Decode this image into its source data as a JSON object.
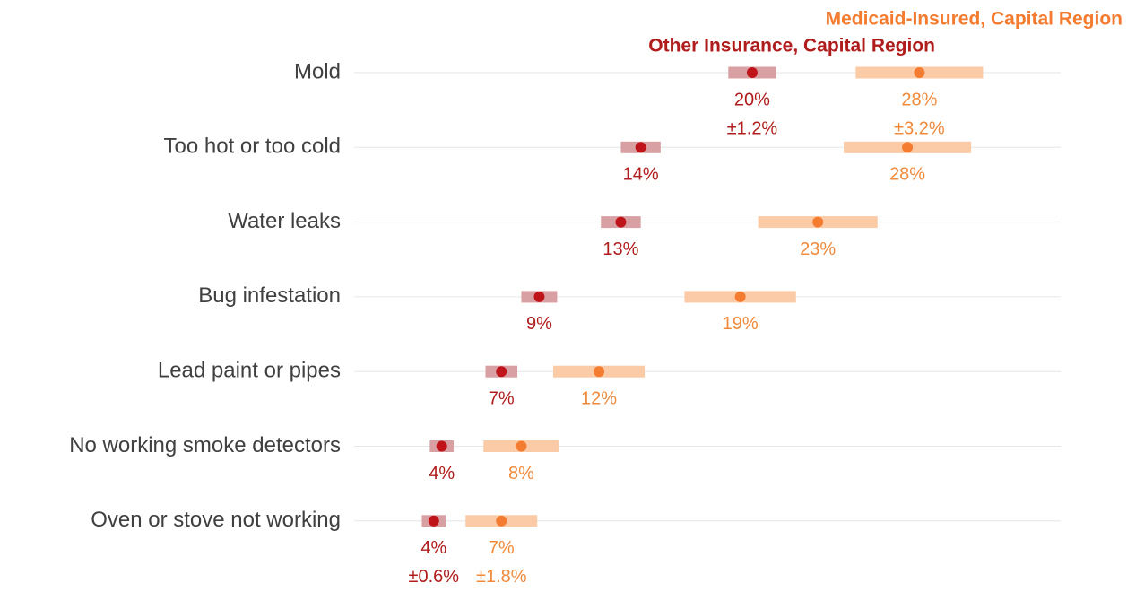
{
  "chart_data": {
    "type": "dot-range",
    "categories": [
      "Mold",
      "Too hot or too cold",
      "Water leaks",
      "Bug infestation",
      "Lead paint or pipes",
      "No working smoke detectors",
      "Oven or stove not working"
    ],
    "series": [
      {
        "name": "Other Insurance, Capital Region",
        "color": "#c0141b",
        "bar_color": "#d9a0a3",
        "label_color": "#b01c1c",
        "values": [
          20.0,
          14.4,
          13.4,
          9.3,
          7.4,
          4.4,
          4.0
        ],
        "value_labels": [
          "20%",
          "14%",
          "13%",
          "9%",
          "7%",
          "4%",
          "4%"
        ],
        "errors": [
          1.2,
          1.0,
          1.0,
          0.9,
          0.8,
          0.6,
          0.6
        ],
        "error_labels": [
          "±1.2%",
          null,
          null,
          null,
          null,
          null,
          "±0.6%"
        ]
      },
      {
        "name": "Medicaid-Insured, Capital Region",
        "color": "#f47c30",
        "bar_color": "#fbcaa6",
        "label_color": "#f08a3c",
        "values": [
          28.4,
          27.8,
          23.3,
          19.4,
          12.3,
          8.4,
          7.4
        ],
        "value_labels": [
          "28%",
          "28%",
          "23%",
          "19%",
          "12%",
          "8%",
          "7%"
        ],
        "errors": [
          3.2,
          3.2,
          3.0,
          2.8,
          2.3,
          1.9,
          1.8
        ],
        "error_labels": [
          "±3.2%",
          null,
          null,
          null,
          null,
          null,
          "±1.8%"
        ]
      }
    ],
    "xlim": [
      0,
      35.5
    ],
    "grid": true
  }
}
